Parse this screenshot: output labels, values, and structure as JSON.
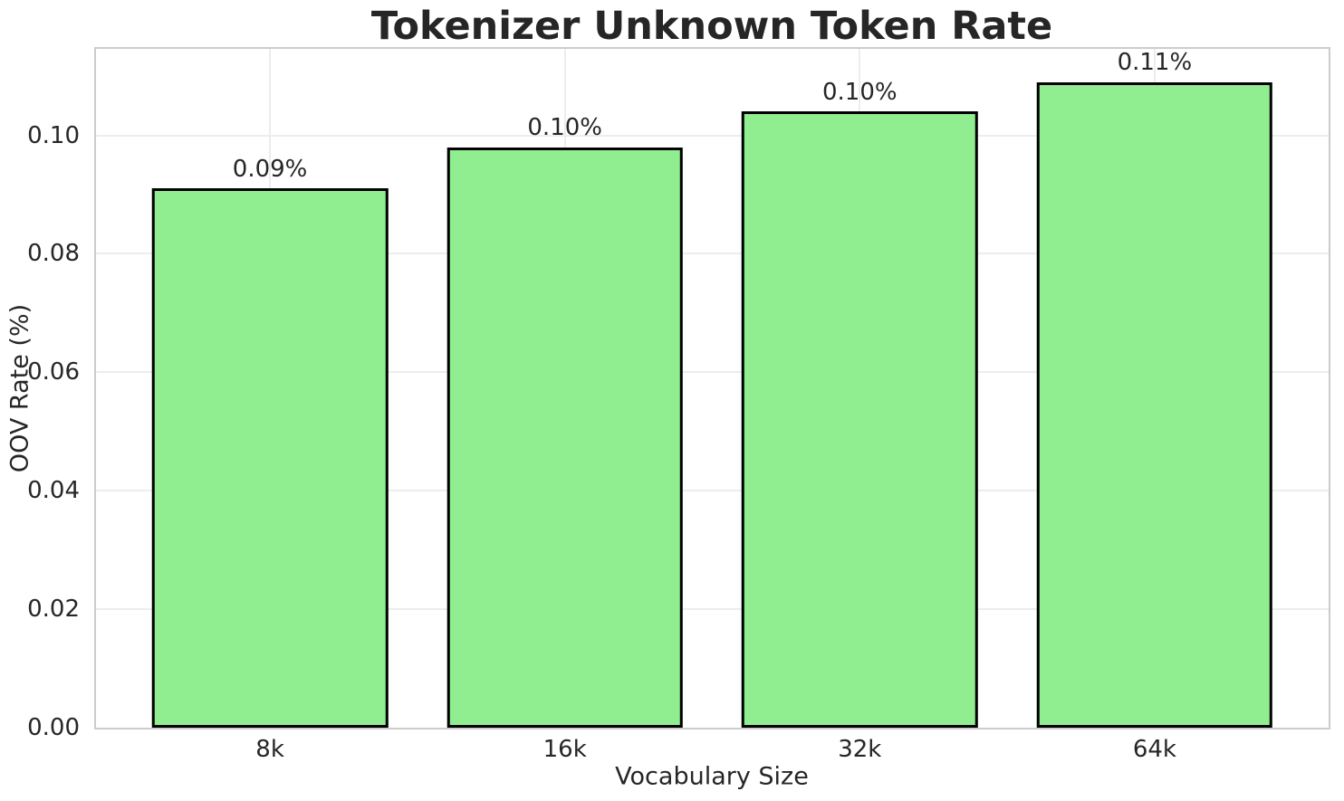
{
  "chart_data": {
    "type": "bar",
    "title": "Tokenizer Unknown Token Rate",
    "xlabel": "Vocabulary Size",
    "ylabel": "OOV Rate (%)",
    "categories": [
      "8k",
      "16k",
      "32k",
      "64k"
    ],
    "values": [
      0.091,
      0.098,
      0.104,
      0.109
    ],
    "bar_labels": [
      "0.09%",
      "0.10%",
      "0.10%",
      "0.11%"
    ],
    "ylim": [
      0,
      0.1146
    ],
    "yticks": [
      0.0,
      0.02,
      0.04,
      0.06,
      0.08,
      0.1
    ],
    "ytick_labels": [
      "0.00",
      "0.02",
      "0.04",
      "0.06",
      "0.08",
      "0.10"
    ],
    "bar_width_data_units": 0.8,
    "x_margin_data_units": 0.59,
    "grid": true,
    "legend_position": "none",
    "colors": {
      "bar_fill": "#90EE90",
      "bar_edge": "#000000",
      "grid": "#ededed",
      "spine": "#cccccc",
      "text": "#262626",
      "figure_background": "#ffffff"
    }
  }
}
